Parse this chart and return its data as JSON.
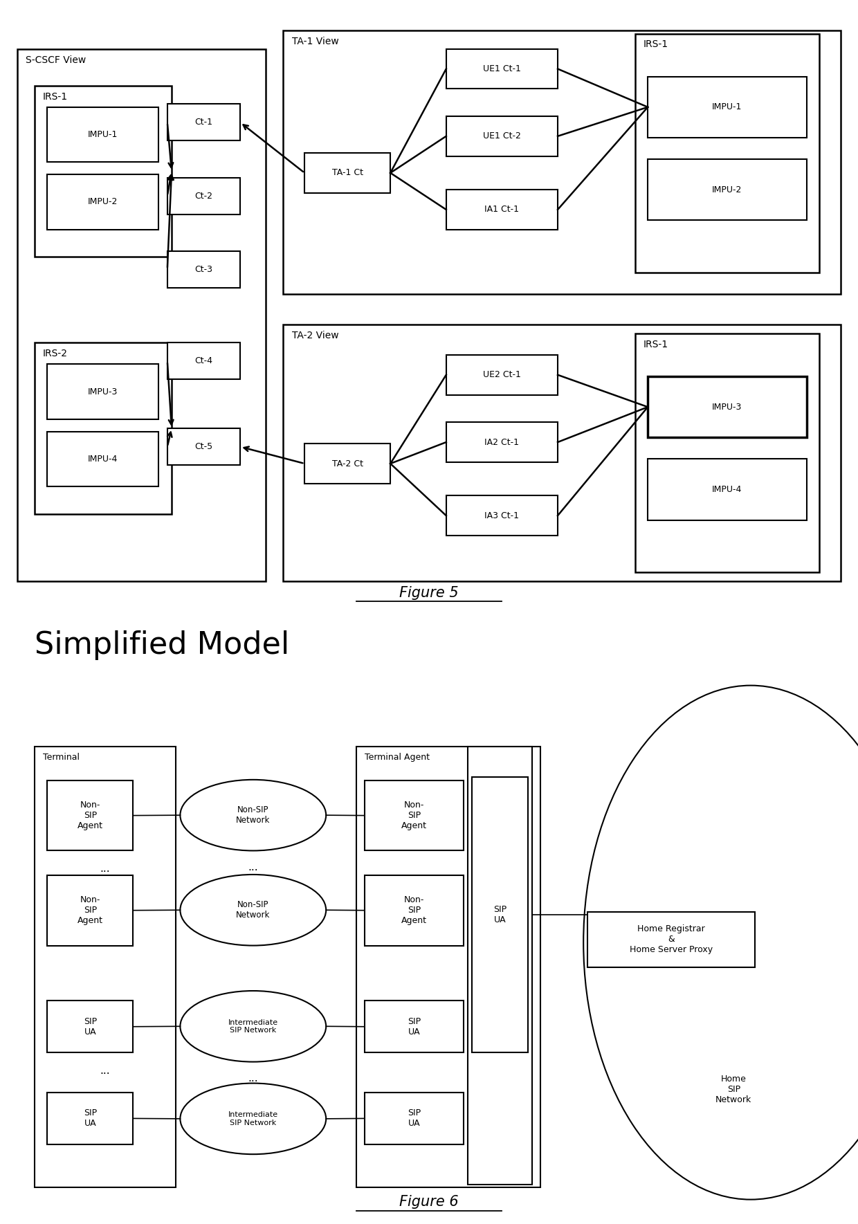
{
  "bg_color": "#ffffff",
  "fig5_title": "Figure 5",
  "fig6_title": "Figure 6",
  "fig6_heading": "Simplified Model"
}
